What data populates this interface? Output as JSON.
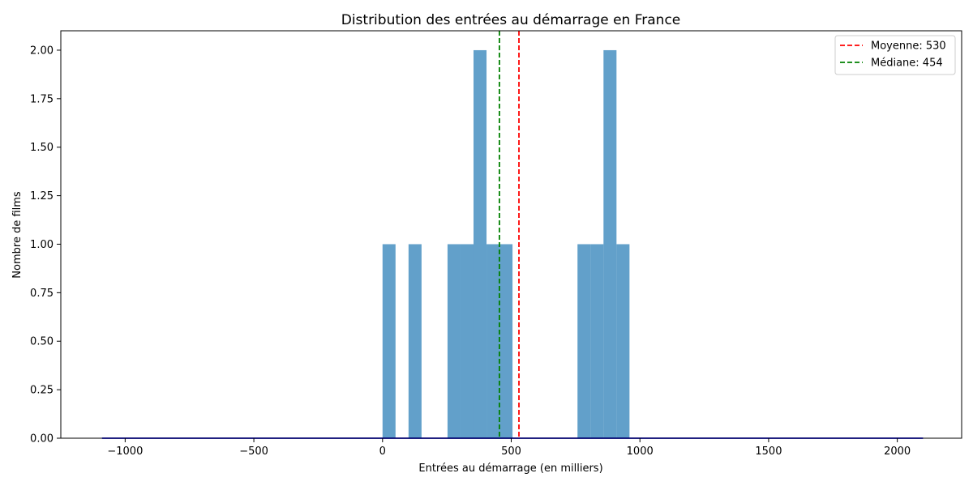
{
  "chart_data": {
    "type": "bar",
    "title": "Distribution des entrées au démarrage en France",
    "xlabel": "Entrées au démarrage (en milliers)",
    "ylabel": "Nombre de films",
    "xlim": [
      -1250,
      2250
    ],
    "ylim": [
      0,
      2.1
    ],
    "bin_width": 50.5,
    "bins": [
      {
        "x0": 0,
        "count": 1
      },
      {
        "x0": 101,
        "count": 1
      },
      {
        "x0": 252.5,
        "count": 1
      },
      {
        "x0": 303,
        "count": 1
      },
      {
        "x0": 353.5,
        "count": 2
      },
      {
        "x0": 404,
        "count": 1
      },
      {
        "x0": 454.5,
        "count": 1
      },
      {
        "x0": 757.5,
        "count": 1
      },
      {
        "x0": 808,
        "count": 1
      },
      {
        "x0": 858.5,
        "count": 2
      },
      {
        "x0": 909,
        "count": 1
      }
    ],
    "x_ticks": [
      -1000,
      -500,
      0,
      500,
      1000,
      1500,
      2000
    ],
    "x_tick_labels": [
      "−1000",
      "−500",
      "0",
      "500",
      "1000",
      "1500",
      "2000"
    ],
    "y_ticks": [
      0,
      0.25,
      0.5,
      0.75,
      1.0,
      1.25,
      1.5,
      1.75,
      2.0
    ],
    "y_tick_labels": [
      "0.00",
      "0.25",
      "0.50",
      "0.75",
      "1.00",
      "1.25",
      "1.50",
      "1.75",
      "2.00"
    ],
    "density_line": {
      "x_start": -1090,
      "x_end": 2100,
      "y": 0
    },
    "reference_lines": [
      {
        "name": "Moyenne: 530",
        "x": 530,
        "color": "#ff0000",
        "style": "dashed"
      },
      {
        "name": "Médiane: 454",
        "x": 454,
        "color": "#008000",
        "style": "dashed"
      }
    ],
    "legend_position": "top-right",
    "bar_color": "#1f77b4",
    "bar_opacity": 0.7,
    "density_color": "#0000ff",
    "grid": false
  }
}
